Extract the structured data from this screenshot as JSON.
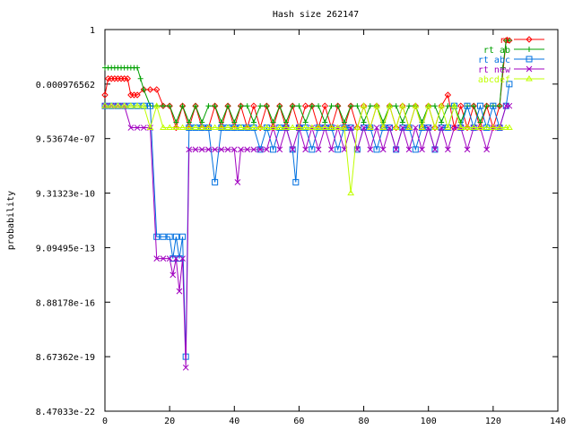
{
  "chart_data": {
    "type": "line",
    "title": "Hash size 262147",
    "xlabel": "",
    "ylabel": "probability",
    "xlim": [
      0,
      140
    ],
    "y_log_base": 2,
    "ylim_log2": [
      -70,
      0
    ],
    "x_ticks": [
      0,
      20,
      40,
      60,
      80,
      100,
      120,
      140
    ],
    "y_ticks": [
      {
        "label": "1",
        "log2": 0
      },
      {
        "label": "0.000976562",
        "log2": -10
      },
      {
        "label": "9.53674e-07",
        "log2": -20
      },
      {
        "label": "9.31323e-10",
        "log2": -30
      },
      {
        "label": "9.09495e-13",
        "log2": -40
      },
      {
        "label": "8.88178e-16",
        "log2": -50
      },
      {
        "label": "8.67362e-19",
        "log2": -60
      },
      {
        "label": "8.47033e-22",
        "log2": -70
      }
    ],
    "grid": false,
    "legend_position": "top-right",
    "series": [
      {
        "name": "rt",
        "color": "#ff0000",
        "marker": "diamond",
        "x": [
          0,
          1,
          2,
          3,
          4,
          5,
          6,
          7,
          8,
          9,
          10,
          12,
          14,
          16,
          18,
          20,
          22,
          24,
          26,
          28,
          30,
          32,
          34,
          36,
          38,
          40,
          42,
          44,
          46,
          48,
          50,
          52,
          54,
          56,
          58,
          60,
          62,
          64,
          66,
          68,
          70,
          72,
          74,
          76,
          78,
          80,
          82,
          84,
          86,
          88,
          90,
          92,
          94,
          96,
          98,
          100,
          102,
          104,
          106,
          108,
          110,
          112,
          114,
          116,
          118,
          120,
          122,
          124,
          125
        ],
        "log2y": [
          -12,
          -9,
          -9,
          -9,
          -9,
          -9,
          -9,
          -9,
          -12,
          -12,
          -12,
          -11,
          -11,
          -11,
          -14,
          -14,
          -18,
          -14,
          -18,
          -14,
          -18,
          -18,
          -14,
          -18,
          -14,
          -18,
          -14,
          -18,
          -14,
          -18,
          -14,
          -18,
          -14,
          -18,
          -14,
          -18,
          -14,
          -14,
          -18,
          -14,
          -18,
          -14,
          -18,
          -14,
          -18,
          -14,
          -18,
          -14,
          -18,
          -14,
          -18,
          -14,
          -18,
          -14,
          -18,
          -14,
          -18,
          -14,
          -12,
          -18,
          -14,
          -18,
          -14,
          -18,
          -14,
          -18,
          -14,
          -2,
          -2
        ]
      },
      {
        "name": "rt ab",
        "color": "#00a000",
        "marker": "plus",
        "x": [
          0,
          1,
          2,
          3,
          4,
          5,
          6,
          7,
          8,
          9,
          10,
          11,
          12,
          14,
          16,
          18,
          20,
          22,
          24,
          26,
          28,
          30,
          32,
          34,
          36,
          38,
          40,
          42,
          44,
          46,
          48,
          50,
          52,
          54,
          56,
          58,
          60,
          62,
          64,
          66,
          68,
          70,
          72,
          74,
          76,
          78,
          80,
          82,
          84,
          86,
          88,
          90,
          92,
          94,
          96,
          98,
          100,
          102,
          104,
          106,
          108,
          110,
          112,
          114,
          116,
          118,
          120,
          122,
          123,
          124,
          125
        ],
        "log2y": [
          -7,
          -7,
          -7,
          -7,
          -7,
          -7,
          -7,
          -7,
          -7,
          -7,
          -7,
          -9,
          -11,
          -14,
          -14,
          -14,
          -14,
          -17,
          -14,
          -17,
          -14,
          -17,
          -14,
          -14,
          -17,
          -14,
          -17,
          -14,
          -14,
          -17,
          -14,
          -14,
          -17,
          -14,
          -17,
          -14,
          -14,
          -17,
          -14,
          -14,
          -17,
          -14,
          -14,
          -17,
          -14,
          -14,
          -17,
          -14,
          -14,
          -17,
          -14,
          -14,
          -17,
          -14,
          -14,
          -17,
          -14,
          -14,
          -17,
          -14,
          -14,
          -17,
          -14,
          -14,
          -17,
          -14,
          -14,
          -14,
          -7,
          -2,
          -2
        ]
      },
      {
        "name": "rt abc",
        "color": "#0070e0",
        "marker": "square",
        "x": [
          0,
          2,
          4,
          6,
          8,
          10,
          12,
          14,
          16,
          18,
          20,
          21,
          22,
          23,
          24,
          25,
          26,
          28,
          30,
          32,
          34,
          36,
          38,
          40,
          42,
          44,
          46,
          48,
          50,
          52,
          54,
          56,
          58,
          59,
          60,
          62,
          64,
          66,
          68,
          70,
          72,
          74,
          76,
          78,
          80,
          82,
          84,
          86,
          88,
          90,
          92,
          94,
          96,
          98,
          100,
          102,
          104,
          106,
          108,
          110,
          112,
          114,
          116,
          118,
          120,
          122,
          124,
          125
        ],
        "log2y": [
          -14,
          -14,
          -14,
          -14,
          -14,
          -14,
          -14,
          -14,
          -38,
          -38,
          -38,
          -42,
          -38,
          -42,
          -38,
          -60,
          -18,
          -18,
          -18,
          -18,
          -28,
          -18,
          -18,
          -18,
          -18,
          -18,
          -18,
          -22,
          -18,
          -22,
          -18,
          -18,
          -22,
          -28,
          -18,
          -18,
          -22,
          -18,
          -18,
          -18,
          -22,
          -18,
          -18,
          -22,
          -18,
          -18,
          -22,
          -18,
          -18,
          -22,
          -18,
          -18,
          -22,
          -18,
          -18,
          -22,
          -18,
          -18,
          -14,
          -18,
          -14,
          -18,
          -14,
          -18,
          -14,
          -18,
          -14,
          -10
        ]
      },
      {
        "name": "rt new",
        "color": "#a000c0",
        "marker": "cross",
        "x": [
          0,
          2,
          4,
          6,
          8,
          10,
          12,
          14,
          16,
          18,
          20,
          21,
          22,
          23,
          24,
          25,
          26,
          28,
          30,
          32,
          34,
          36,
          38,
          40,
          41,
          42,
          44,
          46,
          48,
          50,
          52,
          54,
          56,
          58,
          60,
          62,
          64,
          66,
          68,
          70,
          72,
          74,
          76,
          78,
          80,
          82,
          84,
          86,
          88,
          90,
          92,
          94,
          96,
          98,
          100,
          102,
          104,
          106,
          108,
          110,
          112,
          114,
          116,
          118,
          120,
          122,
          124,
          125
        ],
        "log2y": [
          -14,
          -14,
          -14,
          -14,
          -18,
          -18,
          -18,
          -18,
          -42,
          -42,
          -42,
          -45,
          -42,
          -48,
          -42,
          -62,
          -22,
          -22,
          -22,
          -22,
          -22,
          -22,
          -22,
          -22,
          -28,
          -22,
          -22,
          -22,
          -22,
          -22,
          -18,
          -22,
          -18,
          -22,
          -18,
          -22,
          -18,
          -22,
          -18,
          -22,
          -18,
          -22,
          -18,
          -22,
          -18,
          -22,
          -18,
          -22,
          -18,
          -22,
          -18,
          -22,
          -18,
          -22,
          -18,
          -22,
          -18,
          -22,
          -18,
          -18,
          -22,
          -18,
          -18,
          -22,
          -18,
          -18,
          -14,
          -14
        ]
      },
      {
        "name": "abcdef",
        "color": "#c0ff00",
        "marker": "triangle",
        "x": [
          0,
          2,
          4,
          6,
          8,
          10,
          12,
          14,
          16,
          18,
          20,
          22,
          24,
          26,
          28,
          30,
          32,
          34,
          36,
          38,
          40,
          42,
          44,
          46,
          48,
          50,
          52,
          54,
          56,
          58,
          60,
          62,
          64,
          66,
          68,
          70,
          72,
          74,
          76,
          78,
          80,
          82,
          84,
          86,
          88,
          90,
          92,
          94,
          96,
          98,
          100,
          102,
          104,
          106,
          108,
          110,
          112,
          114,
          116,
          118,
          120,
          122,
          124,
          125
        ],
        "log2y": [
          -14,
          -14,
          -14,
          -14,
          -14,
          -14,
          -14,
          -18,
          -14,
          -18,
          -18,
          -18,
          -18,
          -18,
          -18,
          -18,
          -18,
          -18,
          -18,
          -18,
          -18,
          -18,
          -18,
          -18,
          -18,
          -18,
          -18,
          -18,
          -18,
          -18,
          -18,
          -18,
          -18,
          -18,
          -18,
          -18,
          -18,
          -18,
          -30,
          -18,
          -14,
          -18,
          -14,
          -18,
          -14,
          -18,
          -14,
          -18,
          -14,
          -18,
          -14,
          -18,
          -14,
          -18,
          -14,
          -18,
          -18,
          -18,
          -18,
          -18,
          -18,
          -18,
          -18,
          -18
        ]
      }
    ]
  }
}
